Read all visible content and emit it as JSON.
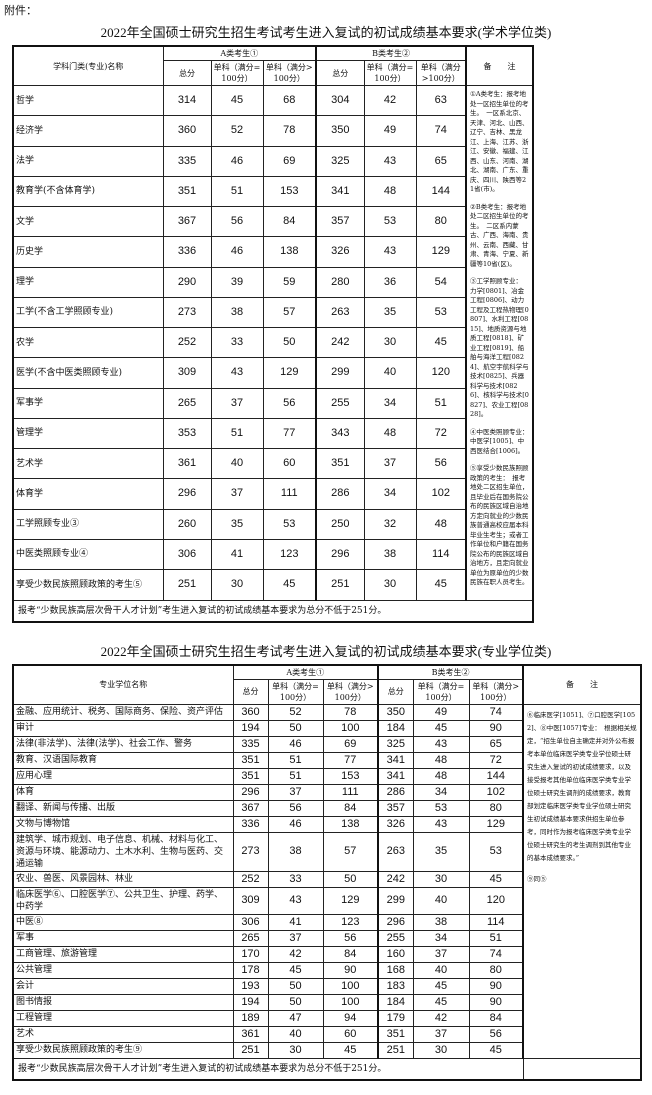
{
  "attachment_label": "附件：",
  "table1": {
    "title": "2022年全国硕士研究生招生考试考生进入复试的初试成绩基本要求(学术学位类)",
    "name_header": "学科门类(专业)名称",
    "group_a": "A类考生①",
    "group_b": "B类考生②",
    "col_total": "总分",
    "col_single100": "单科（满分=100分）",
    "col_single_gt100": "单科（满分>100分）",
    "notes_header": "备　　注",
    "rows": [
      [
        "哲学",
        "314",
        "45",
        "68",
        "304",
        "42",
        "63"
      ],
      [
        "经济学",
        "360",
        "52",
        "78",
        "350",
        "49",
        "74"
      ],
      [
        "法学",
        "335",
        "46",
        "69",
        "325",
        "43",
        "65"
      ],
      [
        "教育学(不含体育学)",
        "351",
        "51",
        "153",
        "341",
        "48",
        "144"
      ],
      [
        "文学",
        "367",
        "56",
        "84",
        "357",
        "53",
        "80"
      ],
      [
        "历史学",
        "336",
        "46",
        "138",
        "326",
        "43",
        "129"
      ],
      [
        "理学",
        "290",
        "39",
        "59",
        "280",
        "36",
        "54"
      ],
      [
        "工学(不含工学照顾专业)",
        "273",
        "38",
        "57",
        "263",
        "35",
        "53"
      ],
      [
        "农学",
        "252",
        "33",
        "50",
        "242",
        "30",
        "45"
      ],
      [
        "医学(不含中医类照顾专业)",
        "309",
        "43",
        "129",
        "299",
        "40",
        "120"
      ],
      [
        "军事学",
        "265",
        "37",
        "56",
        "255",
        "34",
        "51"
      ],
      [
        "管理学",
        "353",
        "51",
        "77",
        "343",
        "48",
        "72"
      ],
      [
        "艺术学",
        "361",
        "40",
        "60",
        "351",
        "37",
        "56"
      ],
      [
        "体育学",
        "296",
        "37",
        "111",
        "286",
        "34",
        "102"
      ],
      [
        "工学照顾专业③",
        "260",
        "35",
        "53",
        "250",
        "32",
        "48"
      ],
      [
        "中医类照顾专业④",
        "306",
        "41",
        "123",
        "296",
        "38",
        "114"
      ],
      [
        "享受少数民族照顾政策的考生⑤",
        "251",
        "30",
        "45",
        "251",
        "30",
        "45"
      ]
    ],
    "notes": [
      "①A类考生：报考地处一区招生单位的考生。　一区系北京、天津、河北、山西、辽宁、吉林、黑龙江、上海、江苏、浙江、安徽、福建、江西、山东、河南、湖北、湖南、广东、重庆、四川、陕西等21省(市)。",
      "②B类考生：报考地处二区招生单位的考生。　二区系内蒙古、广西、海南、贵州、云南、西藏、甘肃、青海、宁夏、新疆等10省(区)。",
      "③工学照顾专业：　力学[0801]、冶金工程[0806]、动力工程及工程热物理[0807]、水利工程[0815]、地质资源与地质工程[0818]、矿业工程[0819]、船舶与海洋工程[0824]、航空宇航科学与技术[0825]、兵器科学与技术[0826]、核科学与技术[0827]、农业工程[0828]。",
      "④中医类照顾专业：　中医学[1005]、中西医结合[1006]。",
      "⑤享受少数民族照顾政策的考生：　报考地处二区招生单位，且毕业后在国务院公布的民族区域自治地方定向就业的少数民族普通高校应届本科毕业生考生；或者工作单位和户籍在国务院公布的民族区域自治地方，且定向就业单位为原单位的少数民族在职人员考生。"
    ],
    "footer": "报考“少数民族高层次骨干人才计划”考生进入复试的初试成绩基本要求为总分不低于251分。"
  },
  "table2": {
    "title": "2022年全国硕士研究生招生考试考生进入复试的初试成绩基本要求(专业学位类)",
    "name_header": "专业学位名称",
    "group_a": "A类考生①",
    "group_b": "B类考生②",
    "col_total": "总分",
    "col_single100": "单科（满分=100分）",
    "col_single_gt100": "单科（满分>100分）",
    "notes_header": "备　　注",
    "rows": [
      [
        "金融、应用统计、税务、国际商务、保险、资产评估",
        "360",
        "52",
        "78",
        "350",
        "49",
        "74"
      ],
      [
        "审计",
        "194",
        "50",
        "100",
        "184",
        "45",
        "90"
      ],
      [
        "法律(非法学)、法律(法学)、社会工作、警务",
        "335",
        "46",
        "69",
        "325",
        "43",
        "65"
      ],
      [
        "教育、汉语国际教育",
        "351",
        "51",
        "77",
        "341",
        "48",
        "72"
      ],
      [
        "应用心理",
        "351",
        "51",
        "153",
        "341",
        "48",
        "144"
      ],
      [
        "体育",
        "296",
        "37",
        "111",
        "286",
        "34",
        "102"
      ],
      [
        "翻译、新闻与传播、出版",
        "367",
        "56",
        "84",
        "357",
        "53",
        "80"
      ],
      [
        "文物与博物馆",
        "336",
        "46",
        "138",
        "326",
        "43",
        "129"
      ],
      [
        "建筑学、城市规划、电子信息、机械、材料与化工、资源与环境、能源动力、土木水利、生物与医药、交通运输",
        "273",
        "38",
        "57",
        "263",
        "35",
        "53"
      ],
      [
        "农业、兽医、风景园林、林业",
        "252",
        "33",
        "50",
        "242",
        "30",
        "45"
      ],
      [
        "临床医学⑥、口腔医学⑦、公共卫生、护理、药学、中药学",
        "309",
        "43",
        "129",
        "299",
        "40",
        "120"
      ],
      [
        "中医⑧",
        "306",
        "41",
        "123",
        "296",
        "38",
        "114"
      ],
      [
        "军事",
        "265",
        "37",
        "56",
        "255",
        "34",
        "51"
      ],
      [
        "工商管理、旅游管理",
        "170",
        "42",
        "84",
        "160",
        "37",
        "74"
      ],
      [
        "公共管理",
        "178",
        "45",
        "90",
        "168",
        "40",
        "80"
      ],
      [
        "会计",
        "193",
        "50",
        "100",
        "183",
        "45",
        "90"
      ],
      [
        "图书情报",
        "194",
        "50",
        "100",
        "184",
        "45",
        "90"
      ],
      [
        "工程管理",
        "189",
        "47",
        "94",
        "179",
        "42",
        "84"
      ],
      [
        "艺术",
        "361",
        "40",
        "60",
        "351",
        "37",
        "56"
      ],
      [
        "享受少数民族照顾政策的考生⑨",
        "251",
        "30",
        "45",
        "251",
        "30",
        "45"
      ]
    ],
    "notes": [
      "⑥临床医学[1051]、⑦口腔医学[1052]、⑧中医[1057]专业：　根据相关规定，“招生单位自主确定并对外公布报考本单位临床医学类专业学位硕士研究生进入复试的初试成绩要求，以及接受报考其他单位临床医学类专业学位硕士研究生调剂的成绩要求，教育部划定临床医学类专业学位硕士研究生初试成绩基本要求供招生单位参考，同时作为报考临床医学类专业学位硕士研究生的考生调剂到其他专业的基本成绩要求。”",
      "⑨同⑤"
    ],
    "footer": "报考“少数民族高层次骨干人才计划”考生进入复试的初试成绩基本要求为总分不低于251分。"
  }
}
